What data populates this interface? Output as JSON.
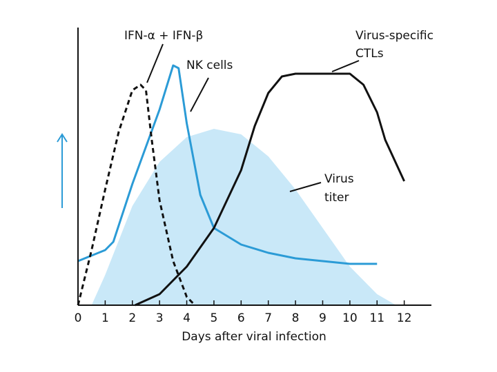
{
  "chart_data": {
    "type": "line",
    "xlabel": "Days after viral infection",
    "x_categories_note_free": null,
    "xlim": [
      0,
      13
    ],
    "ylim": [
      0,
      100
    ],
    "xticks": [
      0,
      1,
      2,
      3,
      4,
      5,
      6,
      7,
      8,
      9,
      10,
      11,
      12
    ],
    "series": [
      {
        "name": "Virus titer",
        "label_lines": [
          "Virus",
          "titer"
        ],
        "color": "#c9e8f8",
        "area": true,
        "x": [
          0.5,
          1,
          2,
          3,
          4,
          5,
          6,
          7,
          8,
          9,
          10,
          11,
          11.7
        ],
        "values": [
          0,
          11,
          36,
          52,
          61,
          64,
          62,
          54,
          42,
          28,
          14,
          4,
          0
        ]
      },
      {
        "name": "NK cells",
        "label_lines": [
          "NK cells"
        ],
        "color": "#2b9bd6",
        "x": [
          0,
          1,
          1.3,
          2,
          3,
          3.5,
          3.7,
          4,
          4.5,
          5,
          6,
          7,
          8,
          9,
          10,
          11
        ],
        "values": [
          16,
          20,
          23,
          44,
          71,
          87,
          86,
          66,
          40,
          28,
          22,
          19,
          17,
          16,
          15,
          15
        ]
      },
      {
        "name": "IFN-α + IFN-β",
        "label_lines": [
          "IFN-α + IFN-β"
        ],
        "color": "#111111",
        "dashed": true,
        "x": [
          0,
          0.5,
          1,
          1.5,
          2,
          2.3,
          2.5,
          2.7,
          3,
          3.5,
          4,
          4.3
        ],
        "values": [
          0,
          20,
          42,
          63,
          78,
          80,
          78,
          61,
          38,
          16,
          3,
          0
        ]
      },
      {
        "name": "Virus-specific CTLs",
        "label_lines": [
          "Virus-specific",
          "CTLs"
        ],
        "color": "#111111",
        "x": [
          2.1,
          3,
          4,
          5,
          6,
          6.5,
          7,
          7.5,
          8,
          9,
          10,
          10.5,
          11,
          11.3,
          12
        ],
        "values": [
          0,
          4,
          14,
          28,
          49,
          65,
          77,
          83,
          84,
          84,
          84,
          80,
          70,
          60,
          45
        ]
      }
    ]
  }
}
